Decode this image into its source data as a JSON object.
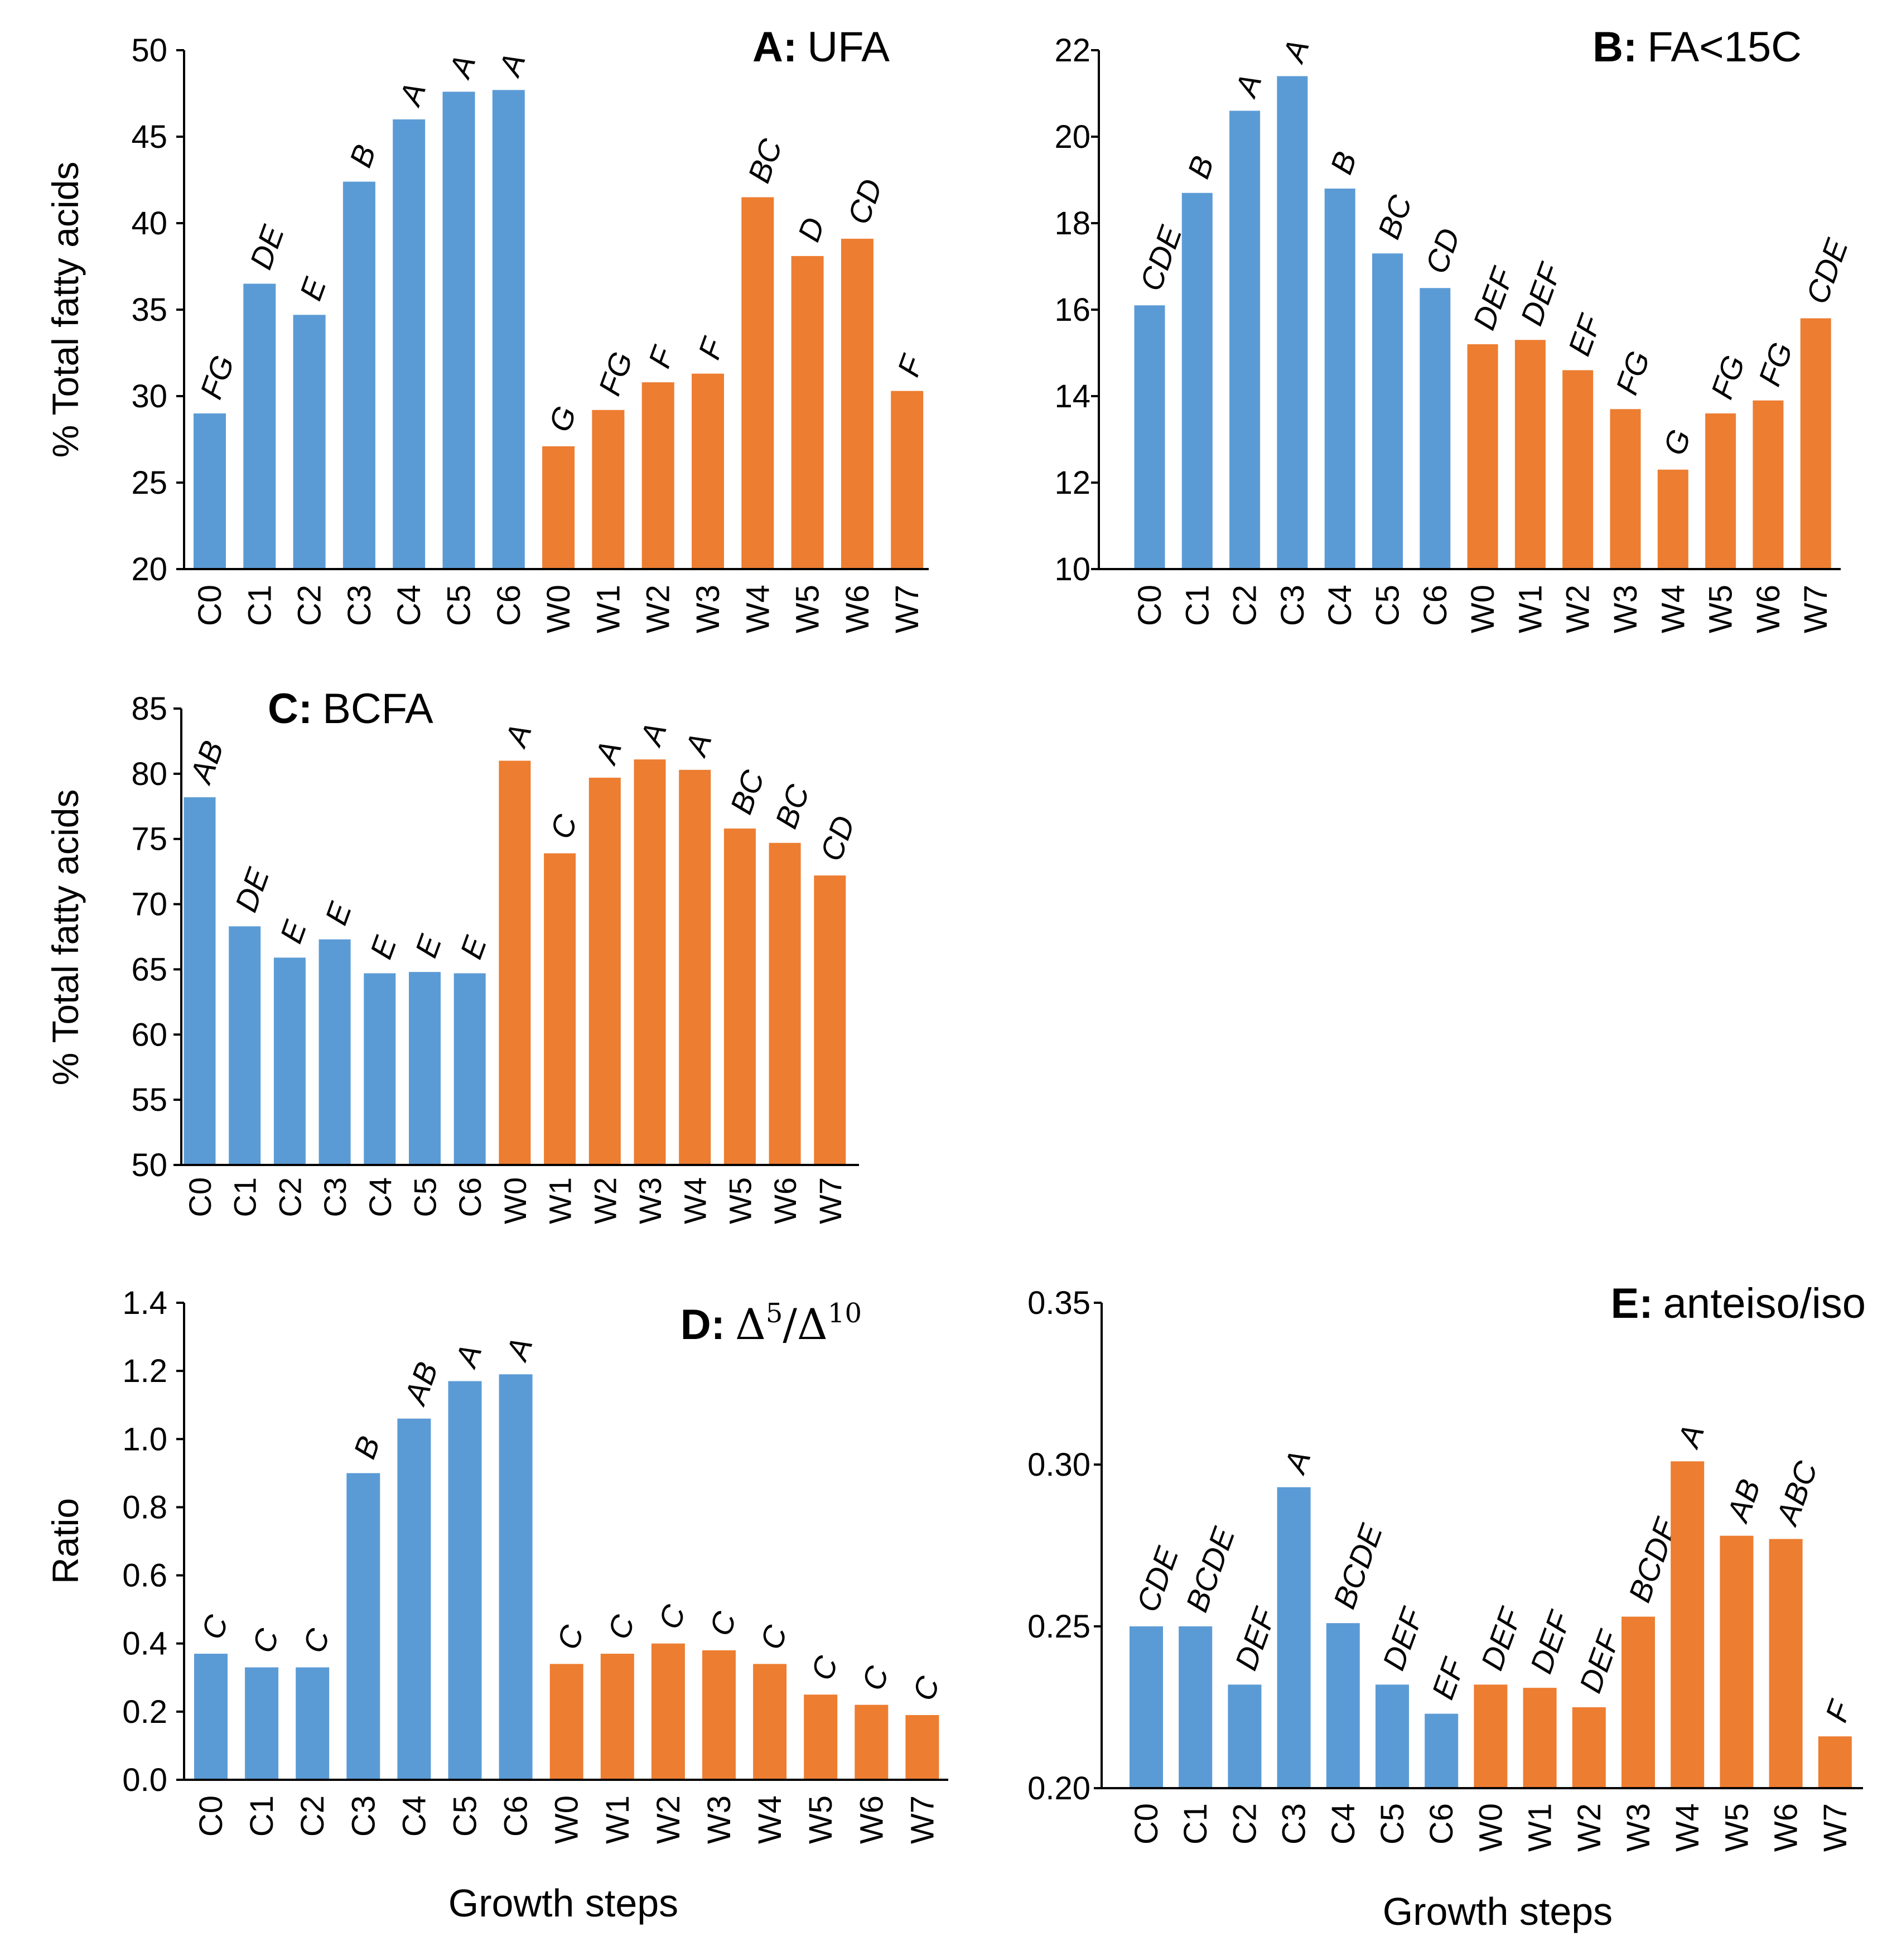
{
  "figure": {
    "colors": {
      "C": "#5B9BD5",
      "W": "#ED7D31",
      "axis": "#000000"
    }
  },
  "chart_data": [
    {
      "id": "A",
      "type": "bar",
      "title_letter": "A:",
      "title_text": "UFA",
      "ylabel": "% Total fatty acids",
      "xlabel": "",
      "ylim": [
        20,
        50
      ],
      "yticks": [
        "20",
        "25",
        "30",
        "35",
        "40",
        "45",
        "50"
      ],
      "categories": [
        "C0",
        "C1",
        "C2",
        "C3",
        "C4",
        "C5",
        "C6",
        "W0",
        "W1",
        "W2",
        "W3",
        "W4",
        "W5",
        "W6",
        "W7"
      ],
      "values": [
        29.0,
        36.5,
        34.7,
        42.4,
        46.0,
        47.6,
        47.7,
        27.1,
        29.2,
        30.8,
        31.3,
        41.5,
        38.1,
        39.1,
        30.3
      ],
      "letters": [
        "FG",
        "DE",
        "E",
        "B",
        "A",
        "A",
        "A",
        "G",
        "FG",
        "F",
        "F",
        "BC",
        "D",
        "CD",
        "F"
      ]
    },
    {
      "id": "B",
      "type": "bar",
      "title_letter": "B:",
      "title_text": "FA<15C",
      "ylabel": "",
      "xlabel": "",
      "ylim": [
        10,
        22
      ],
      "yticks": [
        "10",
        "12",
        "14",
        "16",
        "18",
        "20",
        "22"
      ],
      "categories": [
        "C0",
        "C1",
        "C2",
        "C3",
        "C4",
        "C5",
        "C6",
        "W0",
        "W1",
        "W2",
        "W3",
        "W4",
        "W5",
        "W6",
        "W7"
      ],
      "values": [
        16.1,
        18.7,
        20.6,
        21.4,
        18.8,
        17.3,
        16.5,
        15.2,
        15.3,
        14.6,
        13.7,
        12.3,
        13.6,
        13.9,
        15.8
      ],
      "letters": [
        "CDE",
        "B",
        "A",
        "A",
        "B",
        "BC",
        "CD",
        "DEF",
        "DEF",
        "EF",
        "FG",
        "G",
        "FG",
        "FG",
        "CDE"
      ]
    },
    {
      "id": "C",
      "type": "bar",
      "title_letter": "C:",
      "title_text": "BCFA",
      "ylabel": "% Total fatty acids",
      "xlabel": "",
      "ylim": [
        50,
        85
      ],
      "yticks": [
        "50",
        "55",
        "60",
        "65",
        "70",
        "75",
        "80",
        "85"
      ],
      "categories": [
        "C0",
        "C1",
        "C2",
        "C3",
        "C4",
        "C5",
        "C6",
        "W0",
        "W1",
        "W2",
        "W3",
        "W4",
        "W5",
        "W6",
        "W7"
      ],
      "values": [
        78.2,
        68.3,
        65.9,
        67.3,
        64.7,
        64.8,
        64.7,
        81.0,
        73.9,
        79.7,
        81.1,
        80.3,
        75.8,
        74.7,
        72.2
      ],
      "letters": [
        "AB",
        "DE",
        "E",
        "E",
        "E",
        "E",
        "E",
        "A",
        "C",
        "A",
        "A",
        "A",
        "BC",
        "BC",
        "CD"
      ]
    },
    {
      "id": "D",
      "type": "bar",
      "title_letter": "D:",
      "title_text": "Δ",
      "title_sup1": "5",
      "title_mid": "/Δ",
      "title_sup2": "10",
      "ylabel": "Ratio",
      "xlabel": "Growth steps",
      "ylim": [
        0.0,
        1.4
      ],
      "yticks": [
        "0.0",
        "0.2",
        "0.4",
        "0.6",
        "0.8",
        "1.0",
        "1.2",
        "1.4"
      ],
      "categories": [
        "C0",
        "C1",
        "C2",
        "C3",
        "C4",
        "C5",
        "C6",
        "W0",
        "W1",
        "W2",
        "W3",
        "W4",
        "W5",
        "W6",
        "W7"
      ],
      "values": [
        0.37,
        0.33,
        0.33,
        0.9,
        1.06,
        1.17,
        1.19,
        0.34,
        0.37,
        0.4,
        0.38,
        0.34,
        0.25,
        0.22,
        0.19
      ],
      "letters": [
        "C",
        "C",
        "C",
        "B",
        "AB",
        "A",
        "A",
        "C",
        "C",
        "C",
        "C",
        "C",
        "C",
        "C",
        "C"
      ]
    },
    {
      "id": "E",
      "type": "bar",
      "title_letter": "E:",
      "title_text": "anteiso/iso",
      "ylabel": "",
      "xlabel": "Growth steps",
      "ylim": [
        0.2,
        0.35
      ],
      "yticks": [
        "0.20",
        "0.25",
        "0.30",
        "0.35"
      ],
      "categories": [
        "C0",
        "C1",
        "C2",
        "C3",
        "C4",
        "C5",
        "C6",
        "W0",
        "W1",
        "W2",
        "W3",
        "W4",
        "W5",
        "W6",
        "W7"
      ],
      "values": [
        0.25,
        0.25,
        0.232,
        0.293,
        0.251,
        0.232,
        0.223,
        0.232,
        0.231,
        0.225,
        0.253,
        0.301,
        0.278,
        0.277,
        0.216
      ],
      "letters": [
        "CDE",
        "BCDE",
        "DEF",
        "A",
        "BCDE",
        "DEF",
        "EF",
        "DEF",
        "DEF",
        "DEF",
        "BCDE",
        "A",
        "AB",
        "ABC",
        "F"
      ]
    }
  ]
}
